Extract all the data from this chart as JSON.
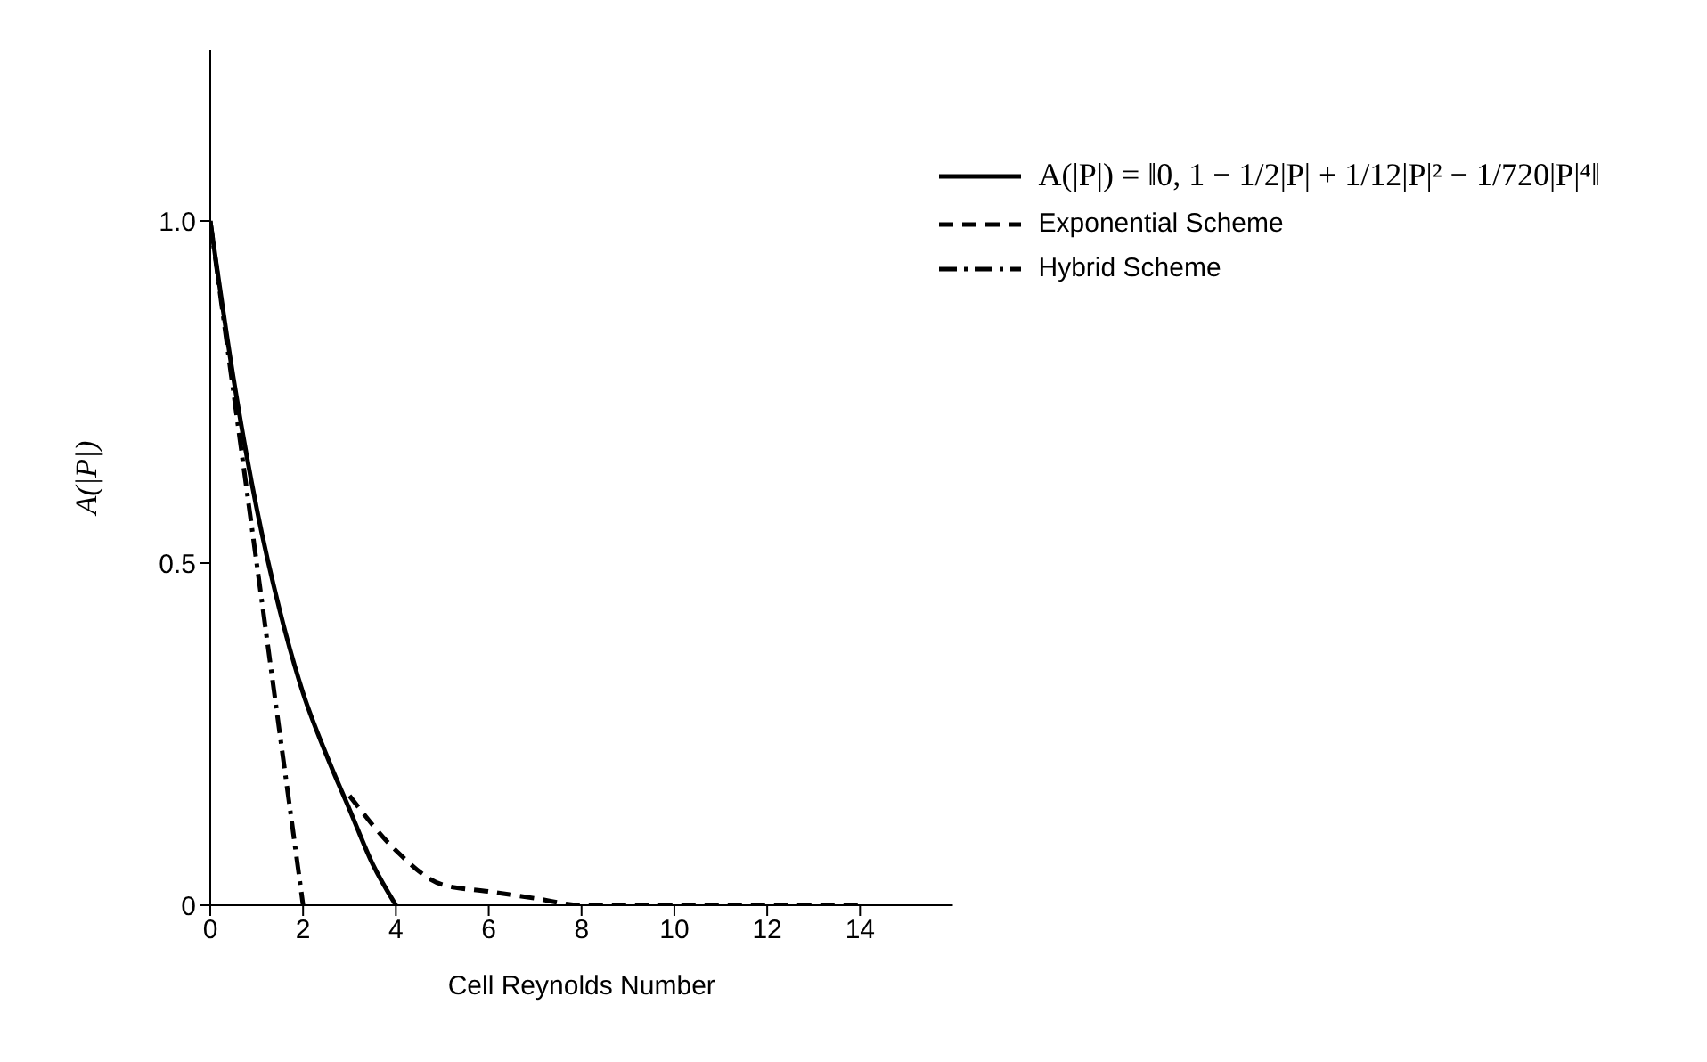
{
  "chart_data": {
    "type": "line",
    "xlabel": "Cell Reynolds Number",
    "ylabel": "A(|P|)",
    "xlim": [
      0,
      16
    ],
    "xticks": [
      0,
      2,
      4,
      6,
      8,
      10,
      12,
      14
    ],
    "ylim": [
      0,
      1.25
    ],
    "yticks": [
      0,
      {
        "value": 0.5,
        "label": "0.5"
      },
      {
        "value": 1,
        "label": "1.0"
      }
    ],
    "legend": "top right",
    "grid": false,
    "marker": "none",
    "series": [
      {
        "name": "A(|P|) = ‖0, 1 − 1/2|P| + 1/12|P|² − 1/720|P|⁴‖",
        "color": "#000000",
        "line_style": "solid",
        "x": [
          0,
          0.5,
          1,
          1.5,
          2,
          2.5,
          3,
          3.5,
          4
        ],
        "values": [
          1,
          0.77,
          0.58,
          0.43,
          0.31,
          0.22,
          0.14,
          0.06,
          0
        ]
      },
      {
        "name": "Exponential Scheme",
        "color": "#000000",
        "line_style": "dashed",
        "x": [
          3,
          4,
          5,
          6,
          7,
          8,
          10,
          12,
          14
        ],
        "values": [
          0.16,
          0.08,
          0.03,
          0.02,
          0.01,
          0,
          0,
          0,
          0
        ]
      },
      {
        "name": "Hybrid Scheme",
        "color": "#000000",
        "line_style": "dashdot",
        "x": [
          0,
          1,
          2
        ],
        "values": [
          1,
          0.5,
          0
        ]
      }
    ]
  }
}
